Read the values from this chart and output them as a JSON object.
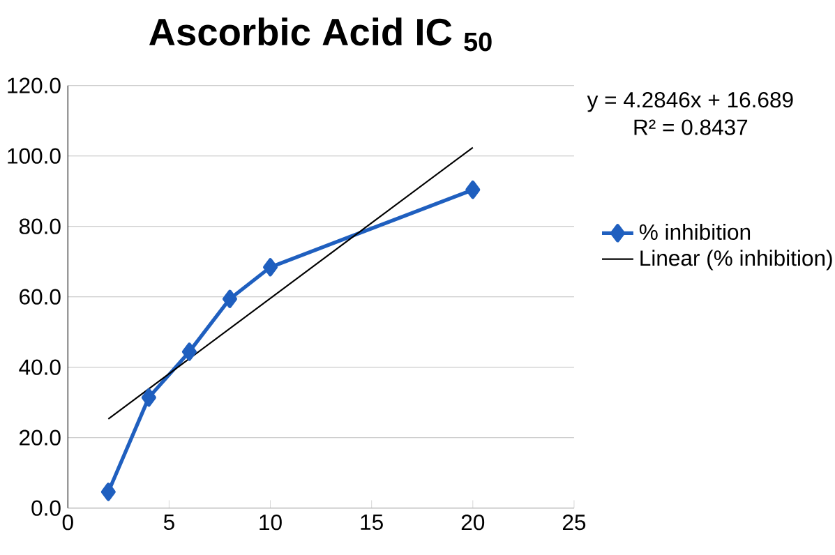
{
  "chart_data": {
    "type": "line",
    "title": "Ascorbic Acid IC $_{50}$",
    "x": [
      2,
      4,
      6,
      8,
      10,
      20
    ],
    "series": [
      {
        "name": "% inhibition",
        "color": "#1f5fbf",
        "marker": "diamond",
        "values": [
          4.6,
          31.4,
          44.4,
          59.4,
          68.4,
          90.4
        ]
      },
      {
        "name": "Linear (% inhibition)",
        "color": "#000000",
        "marker": "none",
        "x": [
          2,
          20
        ],
        "values": [
          25.3,
          102.4
        ]
      }
    ],
    "xlim": [
      0,
      25
    ],
    "xticks": [
      0,
      5,
      10,
      15,
      20,
      25
    ],
    "ylim": [
      0,
      120
    ],
    "yticks": [
      {
        "value": 0,
        "label": "0.0"
      },
      {
        "value": 20,
        "label": "20.0"
      },
      {
        "value": 40,
        "label": "40.0"
      },
      {
        "value": 60,
        "label": "60.0"
      },
      {
        "value": 80,
        "label": "80.0"
      },
      {
        "value": 100,
        "label": "100.0"
      },
      {
        "value": 120,
        "label": "120.0"
      }
    ],
    "grid": "y",
    "legend": "right",
    "annotations": [
      "y = 4.2846x + 16.689",
      "R² = 0.8437"
    ]
  }
}
